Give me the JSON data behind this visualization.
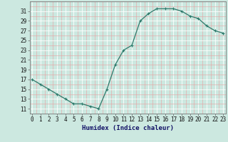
{
  "x": [
    0,
    1,
    2,
    3,
    4,
    5,
    6,
    7,
    8,
    9,
    10,
    11,
    12,
    13,
    14,
    15,
    16,
    17,
    18,
    19,
    20,
    21,
    22,
    23
  ],
  "y": [
    17,
    16,
    15,
    14,
    13,
    12,
    12,
    11.5,
    11,
    15,
    20,
    23,
    24,
    29,
    30.5,
    31.5,
    31.5,
    31.5,
    31,
    30,
    29.5,
    28,
    27,
    26.5
  ],
  "line_color": "#2d7a6b",
  "marker_color": "#2d7a6b",
  "bg_color": "#cce8e0",
  "grid_color_major": "#ffffff",
  "grid_color_minor": "#f0b0b0",
  "xlabel": "Humidex (Indice chaleur)",
  "xlabel_fontsize": 6.5,
  "tick_fontsize": 5.5,
  "ylim": [
    10,
    33
  ],
  "yticks": [
    11,
    13,
    15,
    17,
    19,
    21,
    23,
    25,
    27,
    29,
    31
  ],
  "xticks": [
    0,
    1,
    2,
    3,
    4,
    5,
    6,
    7,
    8,
    9,
    10,
    11,
    12,
    13,
    14,
    15,
    16,
    17,
    18,
    19,
    20,
    21,
    22,
    23
  ],
  "xlim": [
    -0.3,
    23.3
  ]
}
